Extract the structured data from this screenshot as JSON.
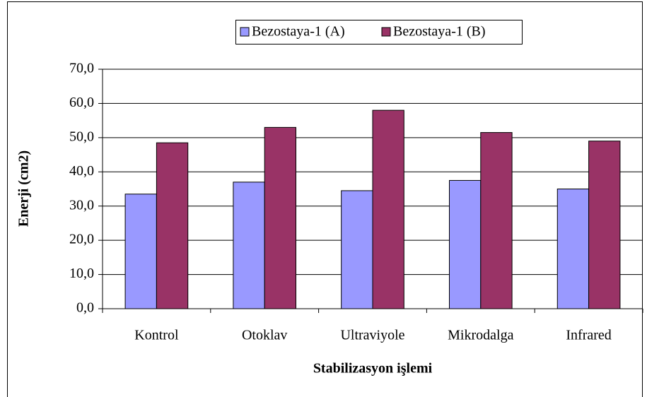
{
  "chart_data": {
    "type": "bar",
    "x_label": "Stabilizasyon işlemi",
    "y_label": "Enerji (cm2)",
    "categories": [
      "Kontrol",
      "Otoklav",
      "Ultraviyole",
      "Mikrodalga",
      "Infrared"
    ],
    "series": [
      {
        "name": "Bezostaya-1 (A)",
        "color": "#9999ff",
        "values": [
          33.5,
          37,
          34.5,
          37.5,
          35
        ]
      },
      {
        "name": "Bezostaya-1 (B)",
        "color": "#993366",
        "values": [
          48.5,
          53,
          58,
          51.5,
          49
        ]
      }
    ],
    "ylim": [
      0,
      70
    ],
    "yticks": [
      {
        "value": 0,
        "label": "0,0"
      },
      {
        "value": 10,
        "label": "10,0"
      },
      {
        "value": 20,
        "label": "20,0"
      },
      {
        "value": 30,
        "label": "30,0"
      },
      {
        "value": 40,
        "label": "40,0"
      },
      {
        "value": 50,
        "label": "50,0"
      },
      {
        "value": 60,
        "label": "60,0"
      },
      {
        "value": 70,
        "label": "70,0"
      }
    ],
    "grid": true,
    "legend": "top"
  }
}
